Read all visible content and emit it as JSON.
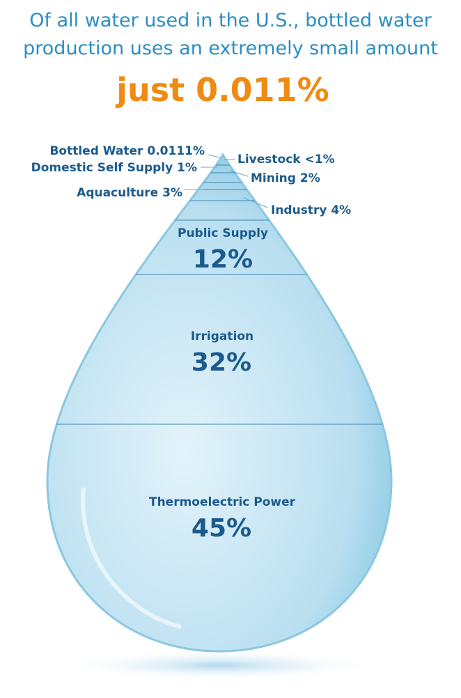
{
  "header": {
    "line1": "Of all water used in the U.S., bottled water",
    "line2": "production uses an extremely small amount",
    "highlight": "just 0.011%"
  },
  "small_labels": {
    "bottled_water": "Bottled Water 0.0111%",
    "domestic_self_supply": "Domestic Self Supply 1%",
    "aquaculture": "Aquaculture 3%",
    "livestock": "Livestock <1%",
    "mining": "Mining 2%",
    "industry": "Industry 4%"
  },
  "sections": [
    {
      "name": "Public Supply",
      "percent": "12%"
    },
    {
      "name": "Irrigation",
      "percent": "32%"
    },
    {
      "name": "Thermoelectric Power",
      "percent": "45%"
    }
  ]
}
